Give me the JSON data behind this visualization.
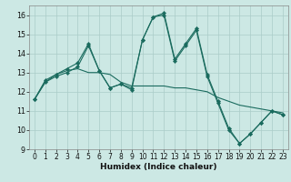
{
  "title": "",
  "xlabel": "Humidex (Indice chaleur)",
  "bg_color": "#cce8e4",
  "grid_color": "#aaccc8",
  "line_color": "#1a6b5e",
  "xlim": [
    -0.5,
    23.5
  ],
  "ylim": [
    9,
    16.5
  ],
  "yticks": [
    9,
    10,
    11,
    12,
    13,
    14,
    15,
    16
  ],
  "xticks": [
    0,
    1,
    2,
    3,
    4,
    5,
    6,
    7,
    8,
    9,
    10,
    11,
    12,
    13,
    14,
    15,
    16,
    17,
    18,
    19,
    20,
    21,
    22,
    23
  ],
  "line1_x": [
    0,
    1,
    2,
    3,
    4,
    5,
    6,
    7,
    8,
    9,
    10,
    11,
    12,
    13,
    14,
    15,
    16,
    17,
    18,
    19,
    20,
    21,
    22,
    23
  ],
  "line1_y": [
    11.6,
    12.6,
    12.9,
    13.2,
    13.5,
    14.5,
    13.1,
    12.2,
    12.4,
    12.1,
    14.7,
    15.9,
    16.1,
    13.7,
    14.5,
    15.3,
    12.9,
    11.5,
    10.1,
    9.3,
    9.8,
    10.4,
    11.0,
    10.8
  ],
  "line2_x": [
    0,
    1,
    2,
    3,
    4,
    5,
    6,
    7,
    8,
    9,
    10,
    11,
    12,
    13,
    14,
    15,
    16,
    17,
    18,
    19,
    20,
    21,
    22,
    23
  ],
  "line2_y": [
    11.6,
    12.5,
    12.9,
    13.1,
    13.2,
    13.0,
    13.0,
    12.9,
    12.5,
    12.3,
    12.3,
    12.3,
    12.3,
    12.2,
    12.2,
    12.1,
    12.0,
    11.7,
    11.5,
    11.3,
    11.2,
    11.1,
    11.0,
    10.9
  ],
  "line3_x": [
    0,
    1,
    2,
    3,
    4,
    5,
    6,
    7,
    8,
    9,
    10,
    11,
    12,
    13,
    14,
    15,
    16,
    17,
    18,
    19,
    20,
    21,
    22,
    23
  ],
  "line3_y": [
    11.6,
    12.5,
    12.8,
    13.0,
    13.3,
    14.4,
    13.1,
    12.2,
    12.4,
    12.2,
    14.7,
    15.9,
    16.0,
    13.6,
    14.4,
    15.2,
    12.8,
    11.4,
    10.0,
    9.3,
    9.8,
    10.4,
    11.0,
    10.8
  ],
  "tick_fontsize": 5.5,
  "xlabel_fontsize": 6.5,
  "marker_size": 2.2
}
